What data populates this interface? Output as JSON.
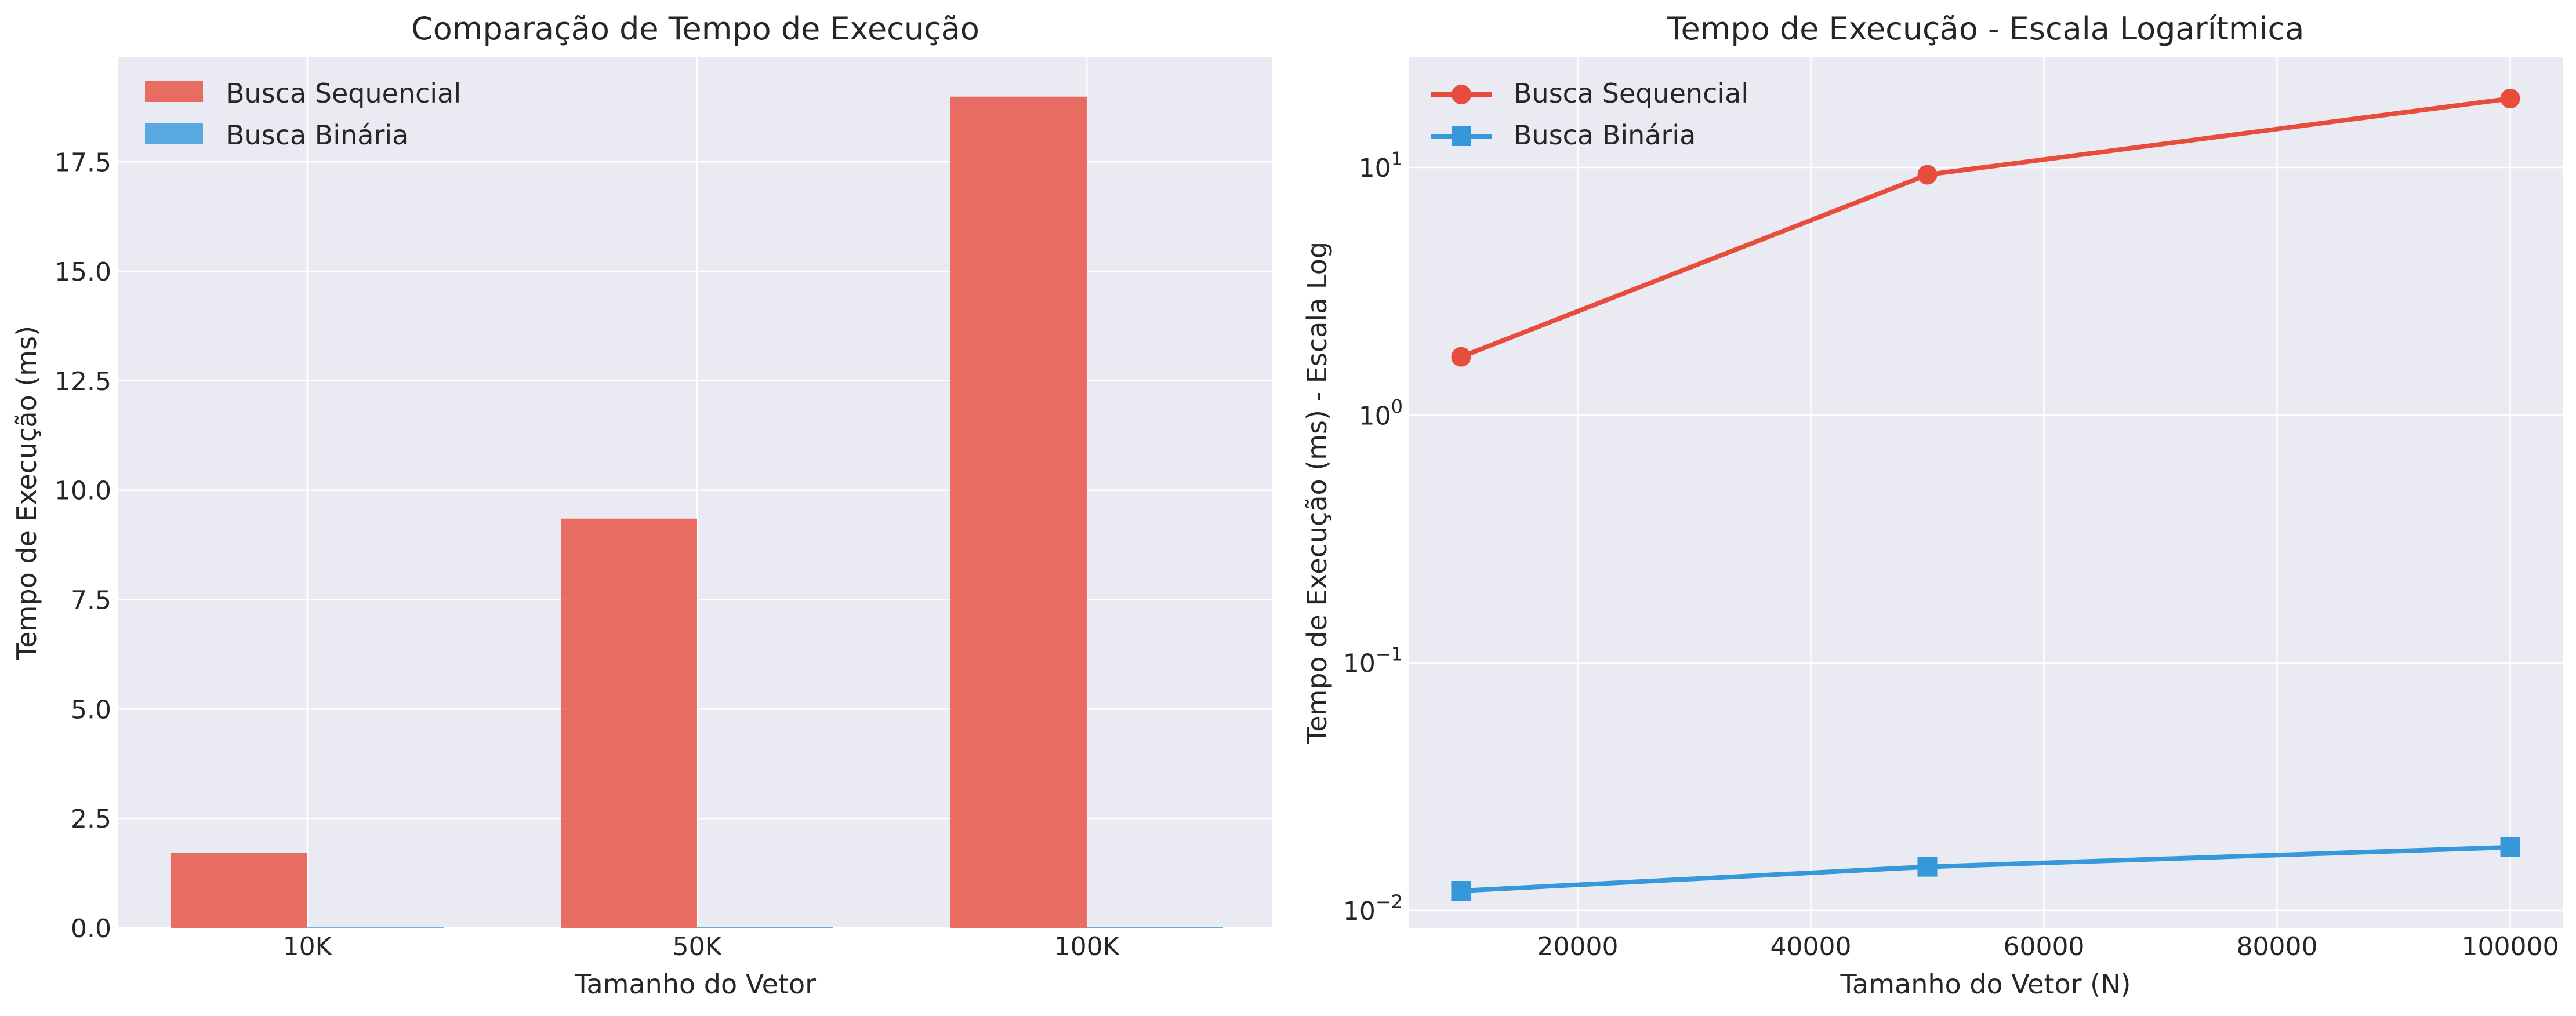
{
  "chart_data": [
    {
      "type": "bar",
      "title": "Comparação de Tempo de Execução",
      "xlabel": "Tamanho do Vetor",
      "ylabel": "Tempo de Execução (ms)",
      "categories": [
        "10K",
        "50K",
        "100K"
      ],
      "ylim": [
        0,
        19.9
      ],
      "yticks": [
        "0.0",
        "2.5",
        "5.0",
        "7.5",
        "10.0",
        "12.5",
        "15.0",
        "17.5"
      ],
      "grid": true,
      "legend_position": "top-left",
      "series": [
        {
          "name": "Busca Sequencial",
          "color": "#e74c3c",
          "values": [
            1.72,
            9.35,
            18.99
          ]
        },
        {
          "name": "Busca Binária",
          "color": "#3498db",
          "values": [
            0.012,
            0.015,
            0.018
          ]
        }
      ]
    },
    {
      "type": "line",
      "title": "Tempo de Execução - Escala Logarítmica",
      "xlabel": "Tamanho do Vetor (N)",
      "ylabel": "Tempo de Execução (ms) - Escala Log",
      "yscale": "log",
      "xlim": [
        5500,
        104500
      ],
      "ylim": [
        0.0085,
        28
      ],
      "xticks": [
        "20000",
        "40000",
        "60000",
        "80000",
        "100000"
      ],
      "yticks": [
        "10^-2",
        "10^-1",
        "10^0",
        "10^1"
      ],
      "grid": true,
      "legend_position": "top-left",
      "series": [
        {
          "name": "Busca Sequencial",
          "color": "#e74c3c",
          "marker": "circle",
          "x": [
            10000,
            50000,
            100000
          ],
          "y": [
            1.72,
            9.35,
            18.99
          ]
        },
        {
          "name": "Busca Binária",
          "color": "#3498db",
          "marker": "square",
          "x": [
            10000,
            50000,
            100000
          ],
          "y": [
            0.012,
            0.015,
            0.018
          ]
        }
      ]
    }
  ]
}
